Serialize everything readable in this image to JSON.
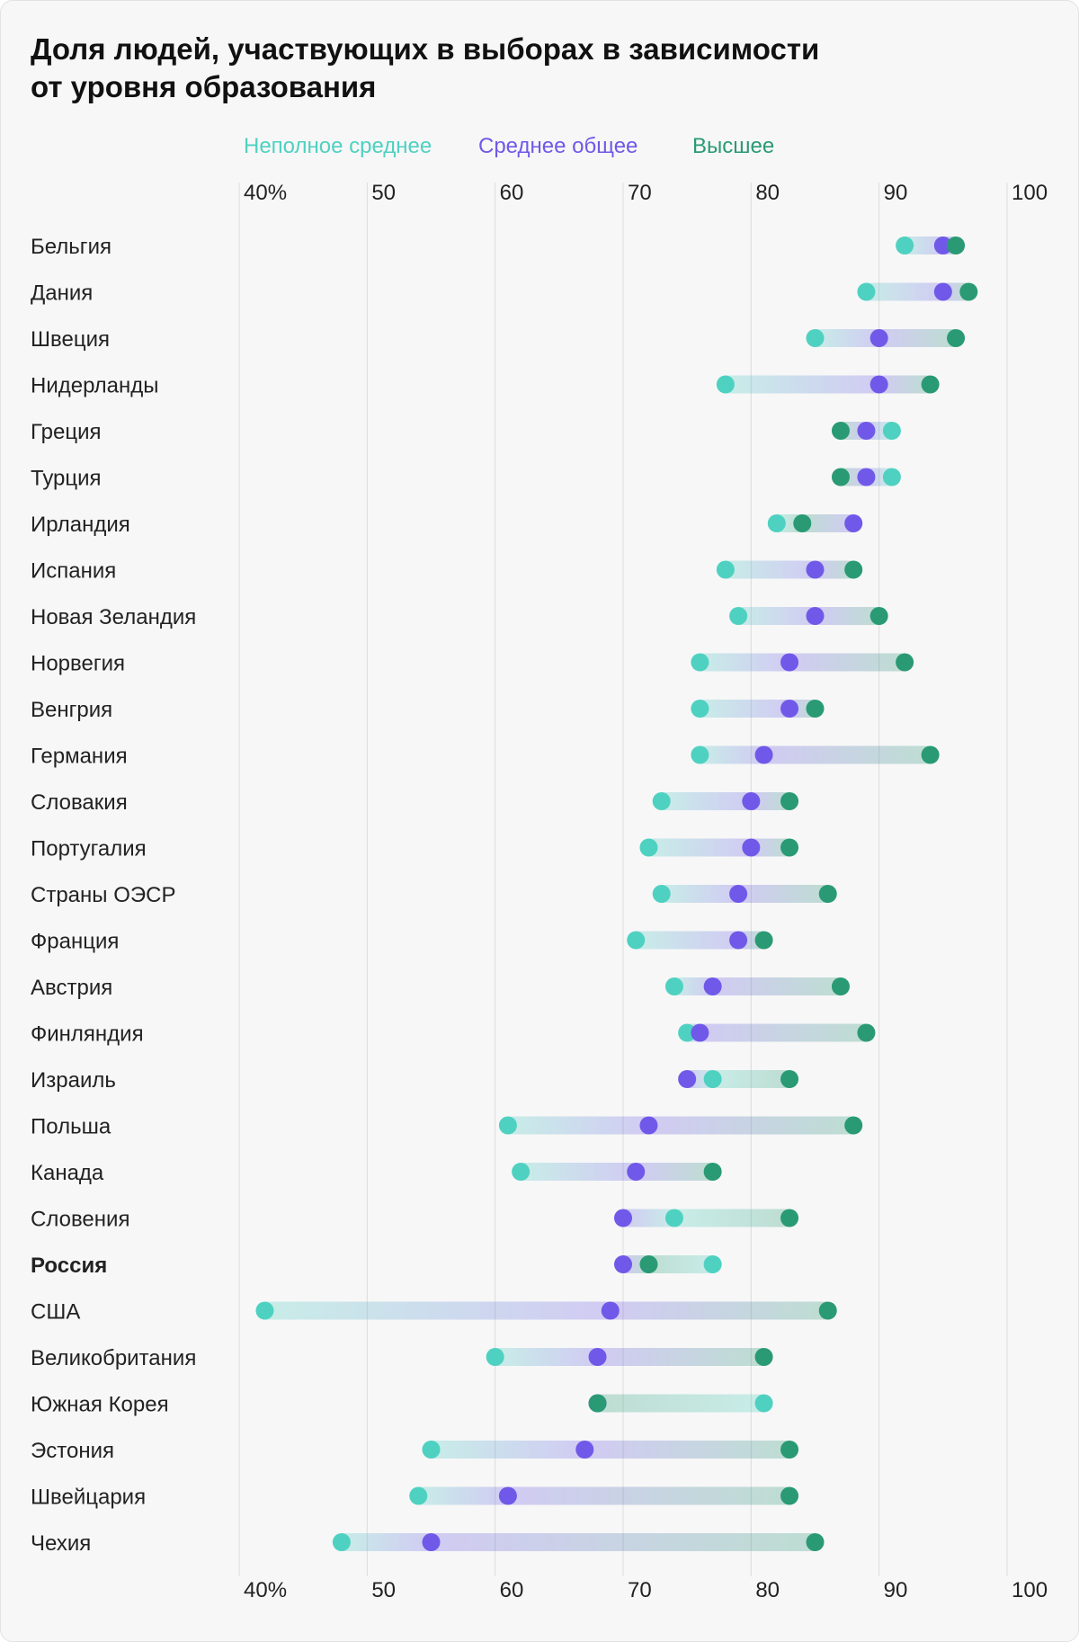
{
  "chart_data": {
    "type": "dumbbell",
    "title": "Доля людей, участвующих в выборах в зависимости от уровня образования",
    "title_lines": [
      "Доля людей, участвующих в выборах в зависимости",
      "от уровня образования"
    ],
    "x_ticks": [
      "40%",
      "50",
      "60",
      "70",
      "80",
      "90",
      "100"
    ],
    "xlim": [
      40,
      100
    ],
    "grid": true,
    "legend_position": "top",
    "highlight": "Россия",
    "categories": [
      "Бельгия",
      "Дания",
      "Швеция",
      "Нидерланды",
      "Греция",
      "Турция",
      "Ирландия",
      "Испания",
      "Новая Зеландия",
      "Норвегия",
      "Венгрия",
      "Германия",
      "Словакия",
      "Португалия",
      "Страны ОЭСР",
      "Франция",
      "Австрия",
      "Финляндия",
      "Израиль",
      "Польша",
      "Канада",
      "Словения",
      "Россия",
      "США",
      "Великобритания",
      "Южная Корея",
      "Эстония",
      "Швейцария",
      "Чехия"
    ],
    "series": [
      {
        "name": "Неполное среднее",
        "color": "#4fd1c1",
        "values": [
          92,
          89,
          85,
          78,
          91,
          91,
          82,
          78,
          79,
          76,
          76,
          76,
          73,
          72,
          73,
          71,
          74,
          75,
          77,
          61,
          62,
          74,
          77,
          42,
          60,
          81,
          55,
          54,
          48
        ]
      },
      {
        "name": "Среднее общее",
        "color": "#7059e8",
        "values": [
          95,
          95,
          90,
          90,
          89,
          89,
          88,
          85,
          85,
          83,
          83,
          81,
          80,
          80,
          79,
          79,
          77,
          76,
          75,
          72,
          71,
          70,
          70,
          69,
          68,
          68,
          67,
          61,
          55
        ]
      },
      {
        "name": "Высшее",
        "color": "#2a9a74",
        "values": [
          96,
          97,
          96,
          94,
          87,
          87,
          84,
          88,
          90,
          92,
          85,
          94,
          83,
          83,
          86,
          81,
          87,
          89,
          83,
          88,
          77,
          83,
          72,
          86,
          81,
          68,
          83,
          83,
          85
        ]
      }
    ]
  }
}
